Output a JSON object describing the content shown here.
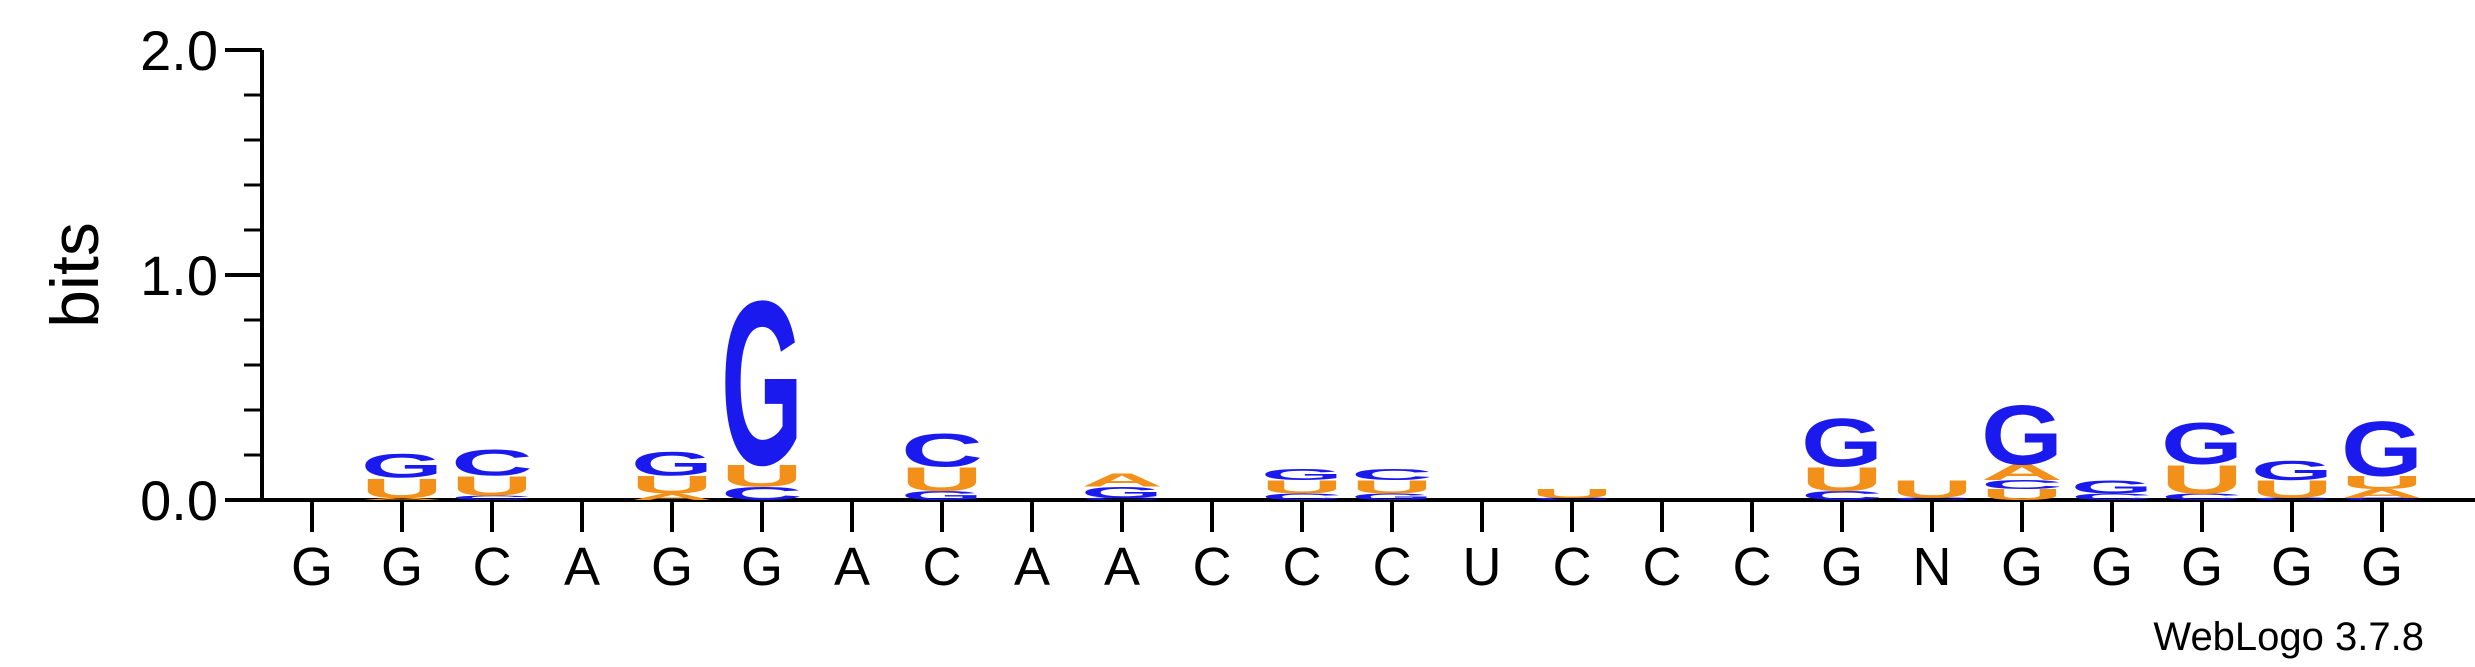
{
  "colors": {
    "G": "#1a1aee",
    "C": "#1a1aee",
    "U": "#f39019",
    "A": "#f39019",
    "axis": "#000000"
  },
  "chart_data": {
    "type": "sequence-logo",
    "ylabel": "bits",
    "ylim": [
      0,
      2
    ],
    "yticks": [
      "0.0",
      "1.0",
      "2.0"
    ],
    "xticks": [
      "G",
      "G",
      "C",
      "A",
      "G",
      "G",
      "A",
      "C",
      "A",
      "A",
      "C",
      "C",
      "C",
      "U",
      "C",
      "C",
      "C",
      "G",
      "N",
      "G",
      "G",
      "G",
      "G",
      "G"
    ],
    "credit": "WebLogo 3.7.8",
    "positions": [
      [],
      [
        [
          "A",
          0.01
        ],
        [
          "U",
          0.09
        ],
        [
          "G",
          0.11
        ]
      ],
      [
        [
          "C",
          0.02
        ],
        [
          "U",
          0.09
        ],
        [
          "C",
          0.12
        ]
      ],
      [],
      [
        [
          "A",
          0.03
        ],
        [
          "U",
          0.08
        ],
        [
          "G",
          0.11
        ]
      ],
      [
        [
          "C",
          0.06
        ],
        [
          "U",
          0.1
        ],
        [
          "G",
          0.75
        ]
      ],
      [],
      [
        [
          "G",
          0.04
        ],
        [
          "U",
          0.11
        ],
        [
          "C",
          0.15
        ]
      ],
      [],
      [
        [
          "C",
          0.01
        ],
        [
          "G",
          0.05
        ],
        [
          "A",
          0.06
        ]
      ],
      [],
      [
        [
          "C",
          0.03
        ],
        [
          "U",
          0.06
        ],
        [
          "G",
          0.05
        ]
      ],
      [
        [
          "G",
          0.03
        ],
        [
          "U",
          0.06
        ],
        [
          "C",
          0.05
        ]
      ],
      [],
      [
        [
          "C",
          0.01
        ],
        [
          "U",
          0.04
        ]
      ],
      [],
      [],
      [
        [
          "C",
          0.04
        ],
        [
          "U",
          0.11
        ],
        [
          "G",
          0.22
        ]
      ],
      [
        [
          "C",
          0.01
        ],
        [
          "U",
          0.08
        ]
      ],
      [
        [
          "U",
          0.05
        ],
        [
          "C",
          0.04
        ],
        [
          "A",
          0.07
        ],
        [
          "G",
          0.27
        ]
      ],
      [
        [
          "C",
          0.03
        ],
        [
          "G",
          0.06
        ]
      ],
      [
        [
          "C",
          0.03
        ],
        [
          "U",
          0.13
        ],
        [
          "G",
          0.19
        ]
      ],
      [
        [
          "C",
          0.01
        ],
        [
          "U",
          0.08
        ],
        [
          "G",
          0.09
        ]
      ],
      [
        [
          "C",
          0.01
        ],
        [
          "A",
          0.04
        ],
        [
          "U",
          0.06
        ],
        [
          "G",
          0.25
        ]
      ]
    ]
  }
}
